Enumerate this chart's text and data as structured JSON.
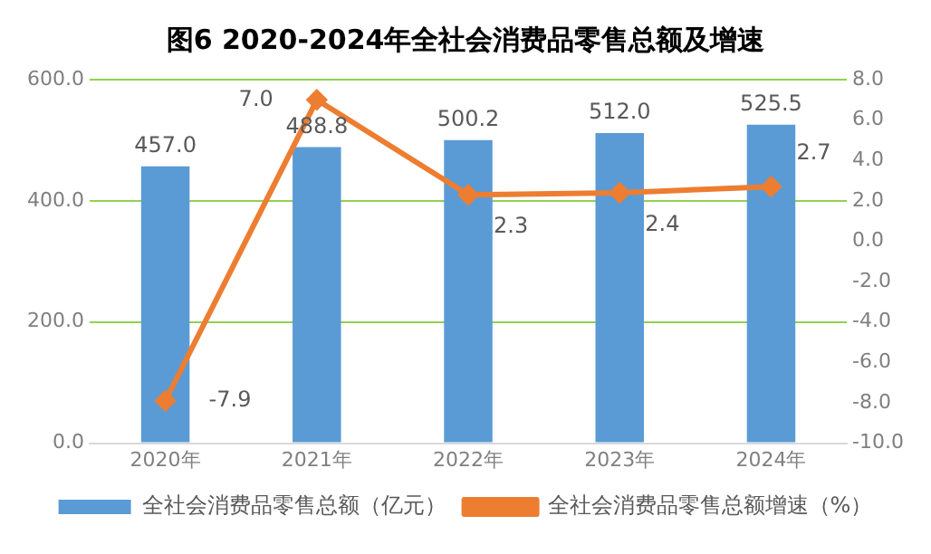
{
  "chart_data": {
    "type": "bar",
    "title": "图6 2020-2024年全社会消费品零售总额及增速",
    "categories": [
      "2020年",
      "2021年",
      "2022年",
      "2023年",
      "2024年"
    ],
    "series": [
      {
        "name": "全社会消费品零售总额（亿元）",
        "color": "#5b9bd5",
        "values": [
          457.0,
          488.8,
          500.2,
          512.0,
          525.5
        ],
        "value_labels": [
          "457.0",
          "488.8",
          "500.2",
          "512.0",
          "525.5"
        ]
      },
      {
        "name": "全社会消费品零售总额增速（%）",
        "type": "line",
        "axis": "y2",
        "color": "#ed7d31",
        "marker": "diamond",
        "values": [
          -7.9,
          7.0,
          2.3,
          2.4,
          2.7
        ],
        "value_labels": [
          "-7.9",
          "7.0",
          "2.3",
          "2.4",
          "2.7"
        ]
      }
    ],
    "ylim": [
      0,
      600
    ],
    "yticks": [
      {
        "value": 0,
        "label": "0.0"
      },
      {
        "value": 200,
        "label": "200.0"
      },
      {
        "value": 400,
        "label": "400.0"
      },
      {
        "value": 600,
        "label": "600.0"
      }
    ],
    "y2lim": [
      -10,
      8
    ],
    "y2ticks": [
      {
        "value": -10,
        "label": "-10.0"
      },
      {
        "value": -8,
        "label": "-8.0"
      },
      {
        "value": -6,
        "label": "-6.0"
      },
      {
        "value": -4,
        "label": "-4.0"
      },
      {
        "value": -2,
        "label": "-2.0"
      },
      {
        "value": 0,
        "label": "0.0"
      },
      {
        "value": 2,
        "label": "2.0"
      },
      {
        "value": 4,
        "label": "4.0"
      },
      {
        "value": 6,
        "label": "6.0"
      },
      {
        "value": 8,
        "label": "8.0"
      }
    ],
    "grid": "y",
    "legend": "bottom"
  }
}
